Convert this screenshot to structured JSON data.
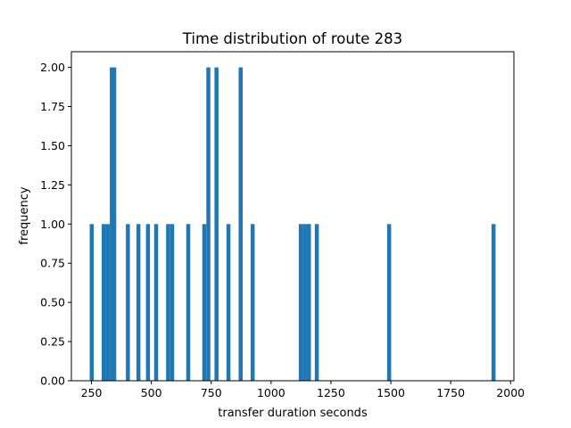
{
  "chart_data": {
    "type": "bar",
    "title": "Time distribution of route 283",
    "xlabel": "transfer duration seconds",
    "ylabel": "frequency",
    "xlim": [
      166,
      2014
    ],
    "ylim": [
      0,
      2.1
    ],
    "grid": false,
    "bar_color": "#1f77b4",
    "bin_width": 16.8,
    "bins": [
      {
        "x": 251,
        "count": 1
      },
      {
        "x": 301,
        "count": 1
      },
      {
        "x": 318,
        "count": 1
      },
      {
        "x": 335,
        "count": 2
      },
      {
        "x": 345,
        "count": 2
      },
      {
        "x": 402,
        "count": 1
      },
      {
        "x": 446,
        "count": 1
      },
      {
        "x": 486,
        "count": 1
      },
      {
        "x": 520,
        "count": 1
      },
      {
        "x": 570,
        "count": 1
      },
      {
        "x": 587,
        "count": 1
      },
      {
        "x": 654,
        "count": 1
      },
      {
        "x": 721,
        "count": 1
      },
      {
        "x": 738,
        "count": 2
      },
      {
        "x": 772,
        "count": 2
      },
      {
        "x": 822,
        "count": 1
      },
      {
        "x": 873,
        "count": 2
      },
      {
        "x": 923,
        "count": 1
      },
      {
        "x": 1124,
        "count": 1
      },
      {
        "x": 1141,
        "count": 1
      },
      {
        "x": 1158,
        "count": 1
      },
      {
        "x": 1191,
        "count": 1
      },
      {
        "x": 1493,
        "count": 1
      },
      {
        "x": 1929,
        "count": 1
      }
    ],
    "xticks": [
      250,
      500,
      750,
      1000,
      1250,
      1500,
      1750,
      2000
    ],
    "yticks": [
      0.0,
      0.25,
      0.5,
      0.75,
      1.0,
      1.25,
      1.5,
      1.75,
      2.0
    ],
    "xtick_labels": [
      "250",
      "500",
      "750",
      "1000",
      "1250",
      "1500",
      "1750",
      "2000"
    ],
    "ytick_labels": [
      "0.00",
      "0.25",
      "0.50",
      "0.75",
      "1.00",
      "1.25",
      "1.50",
      "1.75",
      "2.00"
    ]
  }
}
